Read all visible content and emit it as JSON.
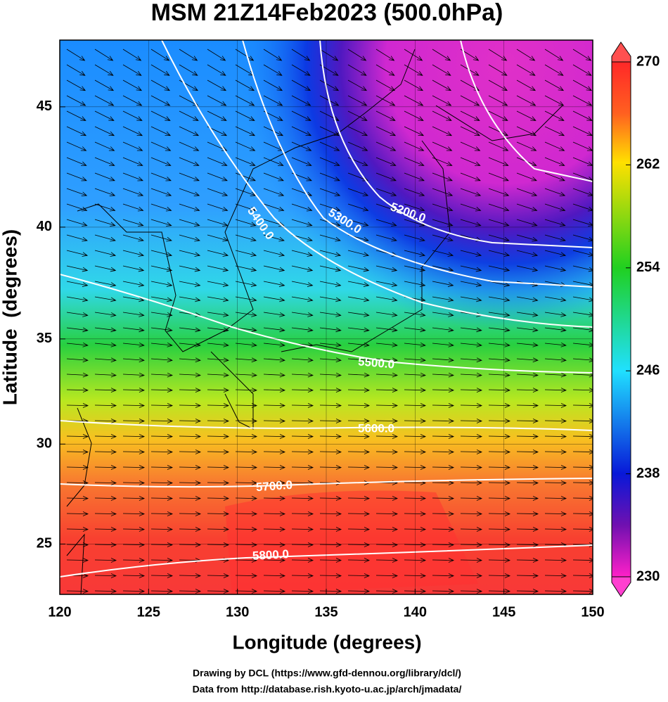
{
  "title": "MSM 21Z14Feb2023 (500.0hPa)",
  "map": {
    "xlabel": "Longitude (degrees)",
    "ylabel": "Latitude  (degrees)",
    "xlim": [
      120,
      150
    ],
    "ylim": [
      22.4,
      47.6
    ],
    "xticks": [
      120,
      125,
      130,
      135,
      140,
      145,
      150
    ],
    "yticks": [
      25,
      30,
      35,
      40,
      45
    ]
  },
  "colorbar": {
    "range": [
      230,
      270
    ],
    "ticks": [
      230,
      238,
      246,
      254,
      262,
      270
    ]
  },
  "contour_labels": [
    {
      "value": 5200,
      "label": "5200.0"
    },
    {
      "value": 5300,
      "label": "5300.0"
    },
    {
      "value": 5400,
      "label": "5400.0"
    },
    {
      "value": 5500,
      "label": "5500.0"
    },
    {
      "value": 5600,
      "label": "5600.0"
    },
    {
      "value": 5700,
      "label": "5700.0"
    },
    {
      "value": 5800,
      "label": "5800.0"
    }
  ],
  "credits": [
    "Drawing by DCL (https://www.gfd-dennou.org/library/dcl/)",
    "Data from http://database.rish.kyoto-u.ac.jp/arch/jmadata/"
  ]
}
